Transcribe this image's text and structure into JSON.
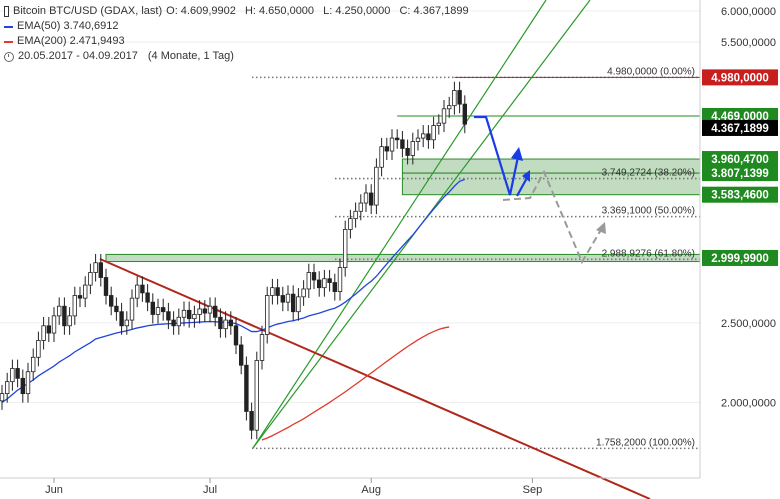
{
  "legend": {
    "instrument": "Bitcoin BTC/USD (GDAX, last)",
    "ohlc": {
      "o": "O: 4.609,9902",
      "h": "H: 4.650,0000",
      "l": "L: 4.250,0000",
      "c": "C: 4.367,1899"
    },
    "ema50": "EMA(50)  3.740,6912",
    "ema200": "EMA(200)  2.471,9493",
    "range": "20.05.2017 - 04.09.2017",
    "period": "(4 Monate, 1 Tag)"
  },
  "colors": {
    "ema50": "#2244dd",
    "ema200": "#e03a2a",
    "up": "#ffffff",
    "down": "#222222",
    "channel": "#2a9a2a",
    "trendline": "#b0281c",
    "zone_fill": "#8fc08f",
    "price_tag": "#c81e1e",
    "green_tag": "#1f8a1f",
    "black_tag": "#000000",
    "projection_blue": "#1a3be8",
    "projection_gray": "#9a9a9a"
  },
  "chart_data": {
    "type": "candlestick",
    "x_start": "2017-05-20",
    "x_end": "2017-09-04",
    "x_ticks": [
      "Jun",
      "Jul",
      "Aug",
      "Sep"
    ],
    "y_scale": "log",
    "y_ticks": [
      "6.000,0000",
      "5.500,0000",
      "2.500,0000",
      "2.000,0000"
    ],
    "y_tick_values": [
      6000,
      5500,
      2500,
      2000
    ],
    "closes": [
      2050,
      2120,
      2200,
      2140,
      2050,
      2180,
      2270,
      2380,
      2480,
      2430,
      2550,
      2620,
      2480,
      2550,
      2700,
      2680,
      2780,
      2880,
      2960,
      2840,
      2700,
      2620,
      2580,
      2480,
      2520,
      2680,
      2780,
      2720,
      2650,
      2560,
      2610,
      2580,
      2520,
      2480,
      2540,
      2590,
      2530,
      2560,
      2600,
      2570,
      2620,
      2540,
      2460,
      2520,
      2480,
      2350,
      2220,
      1950,
      1850,
      2250,
      2420,
      2700,
      2760,
      2700,
      2650,
      2710,
      2580,
      2690,
      2750,
      2880,
      2820,
      2760,
      2830,
      2800,
      2730,
      2920,
      3250,
      3350,
      3420,
      3500,
      3600,
      3480,
      3870,
      4100,
      4050,
      4200,
      4180,
      4080,
      4000,
      4160,
      4200,
      4250,
      4180,
      4350,
      4380,
      4560,
      4600,
      4800,
      4620,
      4367
    ],
    "ema50": [
      2000,
      2020,
      2045,
      2070,
      2090,
      2110,
      2130,
      2155,
      2175,
      2195,
      2215,
      2240,
      2260,
      2280,
      2305,
      2325,
      2345,
      2365,
      2390,
      2400,
      2410,
      2420,
      2430,
      2438,
      2446,
      2455,
      2465,
      2472,
      2480,
      2485,
      2490,
      2492,
      2494,
      2496,
      2498,
      2500,
      2502,
      2504,
      2506,
      2508,
      2510,
      2508,
      2506,
      2504,
      2502,
      2495,
      2480,
      2460,
      2440,
      2440,
      2450,
      2465,
      2480,
      2492,
      2500,
      2510,
      2515,
      2525,
      2535,
      2550,
      2560,
      2570,
      2582,
      2595,
      2605,
      2625,
      2650,
      2680,
      2710,
      2745,
      2780,
      2810,
      2850,
      2900,
      2950,
      3000,
      3050,
      3100,
      3150,
      3200,
      3260,
      3320,
      3380,
      3440,
      3500,
      3560,
      3610,
      3670,
      3720,
      3740
    ],
    "ema200_start_index": 50,
    "ema200": [
      1800,
      1810,
      1822,
      1836,
      1850,
      1864,
      1880,
      1895,
      1910,
      1928,
      1946,
      1964,
      1982,
      2000,
      2020,
      2040,
      2060,
      2082,
      2104,
      2126,
      2150,
      2172,
      2196,
      2220,
      2244,
      2268,
      2292,
      2316,
      2340,
      2362,
      2384,
      2404,
      2424,
      2440,
      2455,
      2465,
      2472
    ],
    "fib_levels": [
      {
        "label": "4.980,0000 (0.00%)",
        "value": 4980
      },
      {
        "label": "3.749,2724 (38.20%)",
        "value": 3749
      },
      {
        "label": "3.369,1000 (50.00%)",
        "value": 3369
      },
      {
        "label": "2.988,9276 (61.80%)",
        "value": 2989
      },
      {
        "label": "1.758,2000 (100.00%)",
        "value": 1758
      }
    ],
    "zones": [
      {
        "from": 3807,
        "to": 3960
      },
      {
        "from": 3583,
        "to": 3807
      },
      {
        "from": 2970,
        "to": 3030
      }
    ],
    "price_tags": [
      {
        "label": "4.980,0000",
        "value": 4980,
        "color": "red"
      },
      {
        "label": "4.469,0000",
        "value": 4469,
        "color": "green"
      },
      {
        "label": "4.367,1899",
        "value": 4367,
        "color": "black"
      },
      {
        "label": "3.960,4700",
        "value": 3960,
        "color": "green"
      },
      {
        "label": "3.807,1399",
        "value": 3807,
        "color": "green"
      },
      {
        "label": "3.583,4600",
        "value": 3583,
        "color": "green"
      },
      {
        "label": "2.999,9900",
        "value": 3000,
        "color": "green"
      }
    ]
  }
}
